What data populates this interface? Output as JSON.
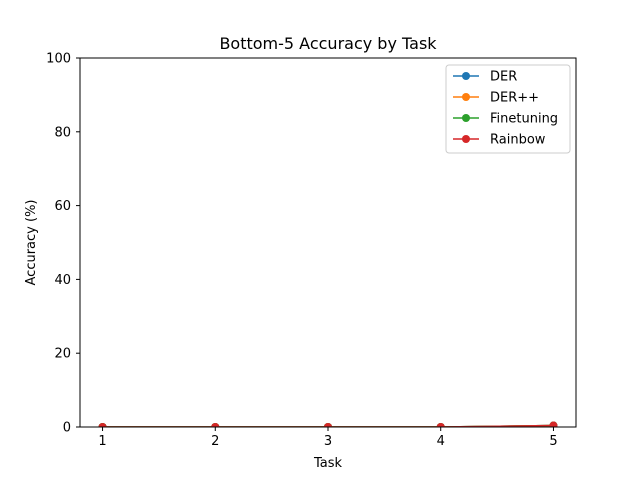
{
  "chart_data": {
    "type": "line",
    "title": "Bottom-5 Accuracy by Task",
    "xlabel": "Task",
    "ylabel": "Accuracy (%)",
    "x": [
      1,
      2,
      3,
      4,
      5
    ],
    "xlim": [
      0.8,
      5.2
    ],
    "ylim": [
      0,
      100
    ],
    "xticks": [
      1,
      2,
      3,
      4,
      5
    ],
    "yticks": [
      0,
      20,
      40,
      60,
      80,
      100
    ],
    "grid": false,
    "legend_position": "top-right",
    "series": [
      {
        "name": "DER",
        "color": "#1f77b4",
        "values": [
          0,
          0,
          0,
          0,
          0.4
        ]
      },
      {
        "name": "DER++",
        "color": "#ff7f0e",
        "values": [
          0,
          0,
          0,
          0,
          0.4
        ]
      },
      {
        "name": "Finetuning",
        "color": "#2ca02c",
        "values": [
          0,
          0,
          0,
          0,
          0.4
        ]
      },
      {
        "name": "Rainbow",
        "color": "#d62728",
        "values": [
          0,
          0,
          0,
          0,
          0.4
        ]
      }
    ]
  }
}
